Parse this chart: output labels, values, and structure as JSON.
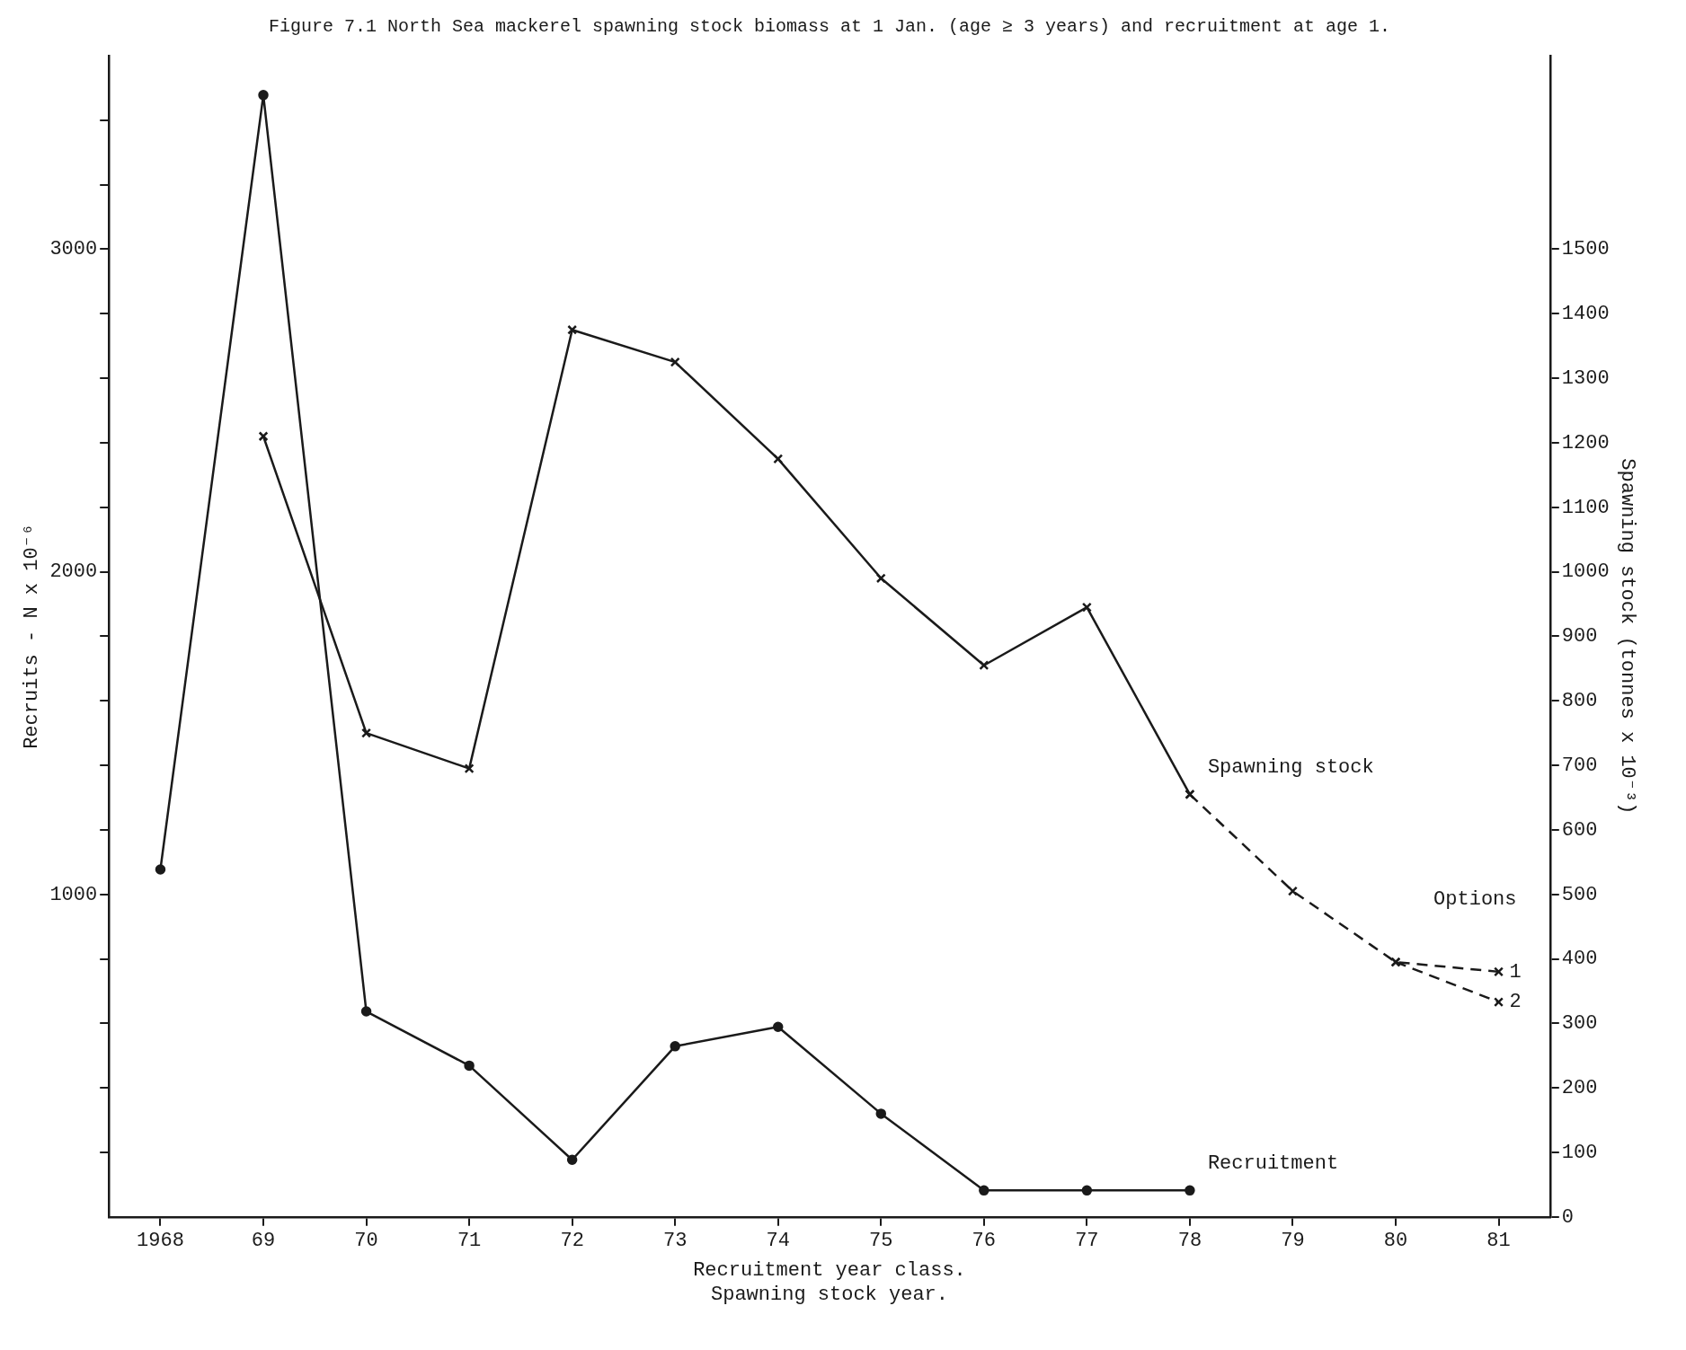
{
  "chart_data": {
    "type": "line",
    "title": "Figure 7.1 North Sea mackerel spawning stock biomass at 1 Jan. (age ≥ 3 years) and recruitment at age 1.",
    "xlabel": "Recruitment year class.\nSpawning stock year.",
    "ylabel": "Recruits - N x 10⁻⁶",
    "y2label": "Spawning stock (tonnes x 10⁻³)",
    "categories": [
      "1968",
      "69",
      "70",
      "71",
      "72",
      "73",
      "74",
      "75",
      "76",
      "77",
      "78",
      "79",
      "80",
      "81"
    ],
    "series": [
      {
        "name": "Recruitment",
        "color": "#1a1a1a",
        "axis": "y",
        "marker": "circle",
        "values": [
          1077,
          3478,
          637,
          469,
          177,
          529,
          589,
          320,
          82,
          82,
          82,
          null,
          null,
          null
        ]
      },
      {
        "name": "Spawning stock",
        "color": "#1a1a1a",
        "axis": "y2",
        "marker": "cross",
        "values": [
          null,
          1210,
          750,
          695,
          1375,
          1325,
          1175,
          990,
          855,
          945,
          655,
          null,
          null,
          null
        ]
      },
      {
        "name": "1",
        "color": "#1a1a1a",
        "axis": "y2",
        "marker": "cross",
        "line_style": "dashed",
        "values": [
          null,
          null,
          null,
          null,
          null,
          null,
          null,
          null,
          null,
          null,
          655,
          505,
          395,
          380
        ]
      },
      {
        "name": "2",
        "color": "#1a1a1a",
        "axis": "y2",
        "marker": "cross",
        "line_style": "dashed",
        "values": [
          null,
          null,
          null,
          null,
          null,
          null,
          null,
          null,
          null,
          null,
          null,
          null,
          395,
          333
        ]
      }
    ],
    "ylim": [
      0,
      3600
    ],
    "yticks": [
      {
        "value": 200,
        "label": null
      },
      {
        "value": 400,
        "label": null
      },
      {
        "value": 600,
        "label": null
      },
      {
        "value": 800,
        "label": null
      },
      1000,
      {
        "value": 1200,
        "label": null
      },
      {
        "value": 1400,
        "label": null
      },
      {
        "value": 1600,
        "label": null
      },
      {
        "value": 1800,
        "label": null
      },
      2000,
      {
        "value": 2200,
        "label": null
      },
      {
        "value": 2400,
        "label": null
      },
      {
        "value": 2600,
        "label": null
      },
      {
        "value": 2800,
        "label": null
      },
      3000,
      {
        "value": 3200,
        "label": null
      },
      {
        "value": 3400,
        "label": null
      }
    ],
    "y2lim": [
      0,
      1800
    ],
    "y2ticks": [
      0,
      100,
      200,
      300,
      400,
      500,
      600,
      700,
      800,
      900,
      1000,
      1100,
      1200,
      1300,
      1400,
      1500
    ],
    "annotations": [
      "Options"
    ],
    "grid": false,
    "legend": false
  }
}
